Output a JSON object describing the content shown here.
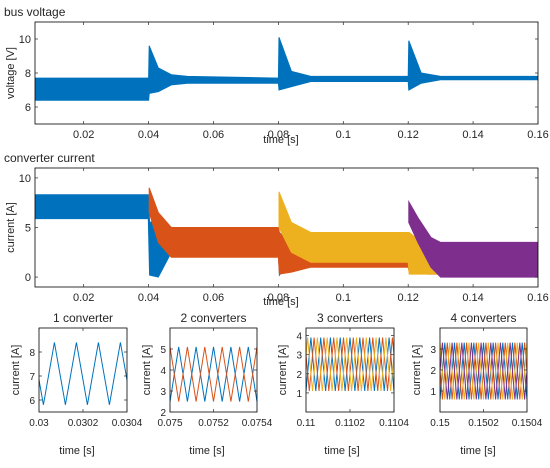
{
  "colors": {
    "c1": "#0072BD",
    "c2": "#D95319",
    "c3": "#EDB120",
    "c4": "#7E2F8E",
    "axis": "#262626",
    "frame": "#000000"
  },
  "chart_data": [
    {
      "id": "bus",
      "type": "line",
      "title": "bus voltage",
      "xlabel": "time [s]",
      "ylabel": "voltage [V]",
      "xlim": [
        0.005,
        0.16
      ],
      "ylim": [
        5,
        11
      ],
      "xticks": [
        0.02,
        0.04,
        0.06,
        0.08,
        0.1,
        0.12,
        0.14,
        0.16
      ],
      "yticks": [
        6,
        8,
        10
      ],
      "ytick_labels": [
        "6",
        "8",
        "10"
      ],
      "series": [
        {
          "color": "c1",
          "band": [
            [
              0.005,
              6.4,
              7.7
            ],
            [
              0.04,
              6.4,
              7.7
            ],
            [
              0.0402,
              6.8,
              9.6
            ],
            [
              0.043,
              6.9,
              8.3
            ],
            [
              0.047,
              7.3,
              7.9
            ],
            [
              0.052,
              7.4,
              7.8
            ],
            [
              0.08,
              7.4,
              7.7
            ],
            [
              0.0802,
              7.0,
              10.1
            ],
            [
              0.084,
              7.2,
              8.1
            ],
            [
              0.09,
              7.5,
              7.8
            ],
            [
              0.12,
              7.5,
              7.8
            ],
            [
              0.1202,
              7.0,
              9.9
            ],
            [
              0.124,
              7.4,
              8.0
            ],
            [
              0.13,
              7.6,
              7.8
            ],
            [
              0.16,
              7.6,
              7.8
            ]
          ]
        }
      ]
    },
    {
      "id": "conv",
      "type": "line",
      "title": "converter current",
      "xlabel": "time [s]",
      "ylabel": "current [A]",
      "xlim": [
        0.005,
        0.16
      ],
      "ylim": [
        -1,
        11
      ],
      "xticks": [
        0.02,
        0.04,
        0.06,
        0.08,
        0.1,
        0.12,
        0.14,
        0.16
      ],
      "yticks": [
        0,
        5,
        10
      ],
      "ytick_labels": [
        "0",
        "5",
        "10"
      ],
      "series": [
        {
          "color": "c1",
          "band": [
            [
              0.005,
              5.9,
              8.3
            ],
            [
              0.0399,
              5.9,
              8.3
            ],
            [
              0.0403,
              0.2,
              5.5
            ],
            [
              0.043,
              0.0,
              5.8
            ],
            [
              0.047,
              2.5,
              4.0
            ],
            [
              0.052,
              2.7,
              3.1
            ],
            [
              0.08,
              2.5,
              3.0
            ],
            [
              0.0803,
              0.2,
              4.5
            ],
            [
              0.085,
              2.2,
              3.0
            ],
            [
              0.09,
              2.2,
              2.8
            ],
            [
              0.12,
              2.2,
              2.7
            ],
            [
              0.1203,
              0.5,
              3.5
            ],
            [
              0.126,
              1.8,
              2.3
            ],
            [
              0.16,
              1.7,
              2.2
            ]
          ]
        },
        {
          "color": "c2",
          "band": [
            [
              0.0402,
              6.5,
              9.0
            ],
            [
              0.043,
              3.5,
              6.5
            ],
            [
              0.047,
              2.0,
              5.0
            ],
            [
              0.052,
              2.0,
              5.0
            ],
            [
              0.08,
              2.0,
              5.0
            ],
            [
              0.0803,
              0.3,
              4.5
            ],
            [
              0.084,
              0.5,
              3.0
            ],
            [
              0.09,
              1.0,
              3.5
            ],
            [
              0.12,
              1.0,
              3.5
            ],
            [
              0.1203,
              0.5,
              3.5
            ],
            [
              0.126,
              0.3,
              3.0
            ],
            [
              0.16,
              0.3,
              3.0
            ]
          ]
        },
        {
          "color": "c3",
          "band": [
            [
              0.0802,
              5.0,
              8.6
            ],
            [
              0.084,
              2.5,
              5.5
            ],
            [
              0.09,
              1.5,
              4.5
            ],
            [
              0.12,
              1.5,
              4.5
            ],
            [
              0.1203,
              0.3,
              4.5
            ],
            [
              0.126,
              0.3,
              3.0
            ],
            [
              0.16,
              0.3,
              3.2
            ]
          ]
        },
        {
          "color": "c4",
          "band": [
            [
              0.1202,
              5.5,
              7.6
            ],
            [
              0.123,
              3.5,
              6.0
            ],
            [
              0.127,
              1.0,
              4.0
            ],
            [
              0.13,
              0.0,
              3.5
            ],
            [
              0.16,
              0.0,
              3.5
            ]
          ]
        }
      ]
    },
    {
      "id": "z1",
      "type": "line",
      "title": "1 converter",
      "xlabel": "time [s]",
      "ylabel": "current [A]",
      "xlim": [
        0.03,
        0.0304
      ],
      "ylim": [
        5.5,
        9
      ],
      "xticks": [
        0.03,
        0.0302,
        0.0304
      ],
      "xtick_labels": [
        "0.03",
        "0.0302",
        "0.0304"
      ],
      "yticks": [
        6,
        7,
        8
      ],
      "ytick_labels": [
        "6",
        "7",
        "8"
      ],
      "periods": 4,
      "series": [
        {
          "color": "c1",
          "min": 5.8,
          "max": 8.4,
          "phase": 0.2
        }
      ]
    },
    {
      "id": "z2",
      "type": "line",
      "title": "2 converters",
      "xlabel": "time [s]",
      "ylabel": "current [A]",
      "xlim": [
        0.075,
        0.0754
      ],
      "ylim": [
        2,
        6
      ],
      "xticks": [
        0.075,
        0.0752,
        0.0754
      ],
      "xtick_labels": [
        "0.075",
        "0.0752",
        "0.0754"
      ],
      "yticks": [
        2,
        3,
        4,
        5
      ],
      "ytick_labels": [
        "2",
        "3",
        "4",
        "5"
      ],
      "periods": 5,
      "series": [
        {
          "color": "c1",
          "min": 2.5,
          "max": 5.1,
          "phase": 0.0
        },
        {
          "color": "c2",
          "min": 2.5,
          "max": 5.1,
          "phase": 0.5
        }
      ]
    },
    {
      "id": "z3",
      "type": "line",
      "title": "3 converters",
      "xlabel": "time [s]",
      "ylabel": "current [A]",
      "xlim": [
        0.11,
        0.1104
      ],
      "ylim": [
        0,
        4.4
      ],
      "xticks": [
        0.11,
        0.1102,
        0.1104
      ],
      "xtick_labels": [
        "0.11",
        "0.1102",
        "0.1104"
      ],
      "yticks": [
        1,
        2,
        3,
        4
      ],
      "ytick_labels": [
        "1",
        "2",
        "3",
        "4"
      ],
      "periods": 9,
      "series": [
        {
          "color": "c1",
          "min": 1.1,
          "max": 3.9,
          "phase": 0.0
        },
        {
          "color": "c2",
          "min": 1.1,
          "max": 3.9,
          "phase": 0.333
        },
        {
          "color": "c3",
          "min": 1.1,
          "max": 3.9,
          "phase": 0.667
        }
      ]
    },
    {
      "id": "z4",
      "type": "line",
      "title": "4 converters",
      "xlabel": "time [s]",
      "ylabel": "current [A]",
      "xlim": [
        0.15,
        0.1504
      ],
      "ylim": [
        0,
        4
      ],
      "xticks": [
        0.15,
        0.1502,
        0.1504
      ],
      "xtick_labels": [
        "0.15",
        "0.1502",
        "0.1504"
      ],
      "yticks": [
        1,
        2,
        3
      ],
      "ytick_labels": [
        "1",
        "2",
        "3"
      ],
      "periods": 9,
      "series": [
        {
          "color": "c1",
          "min": 0.6,
          "max": 3.3,
          "phase": 0.0
        },
        {
          "color": "c2",
          "min": 0.6,
          "max": 3.3,
          "phase": 0.25
        },
        {
          "color": "c3",
          "min": 0.6,
          "max": 3.3,
          "phase": 0.5
        },
        {
          "color": "c4",
          "min": 0.6,
          "max": 3.3,
          "phase": 0.75
        }
      ]
    }
  ]
}
